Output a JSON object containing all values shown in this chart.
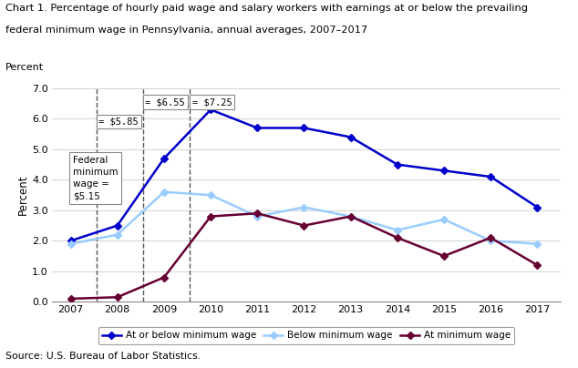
{
  "title_line1": "Chart 1. Percentage of hourly paid wage and salary workers with earnings at or below the prevailing",
  "title_line2": "federal minimum wage in Pennsylvania, annual averages, 2007–2017",
  "years": [
    2007,
    2008,
    2009,
    2010,
    2011,
    2012,
    2013,
    2014,
    2015,
    2016,
    2017
  ],
  "at_or_below": [
    2.0,
    2.5,
    4.7,
    6.3,
    5.7,
    5.7,
    5.4,
    4.5,
    4.3,
    4.1,
    3.1
  ],
  "below": [
    1.9,
    2.2,
    3.6,
    3.5,
    2.8,
    3.1,
    2.8,
    2.35,
    2.7,
    2.0,
    1.9
  ],
  "at": [
    0.1,
    0.15,
    0.8,
    2.8,
    2.9,
    2.5,
    2.8,
    2.1,
    1.5,
    2.1,
    1.2
  ],
  "color_at_or_below": "#0000CC",
  "color_below": "#99CCFF",
  "color_at": "#660033",
  "ylabel": "Percent",
  "ylim": [
    0.0,
    7.0
  ],
  "yticks": [
    0.0,
    1.0,
    2.0,
    3.0,
    4.0,
    5.0,
    6.0,
    7.0
  ],
  "vline_x": [
    2007.55,
    2008.55,
    2009.55
  ],
  "vline_labels": [
    "= $5.85",
    "= $6.55",
    "= $7.25"
  ],
  "box_label": "Federal\nminimum\nwage =\n$5.15",
  "source": "Source: U.S. Bureau of Labor Statistics.",
  "legend_labels": [
    "At or below minimum wage",
    "Below minimum wage",
    "At minimum wage"
  ]
}
